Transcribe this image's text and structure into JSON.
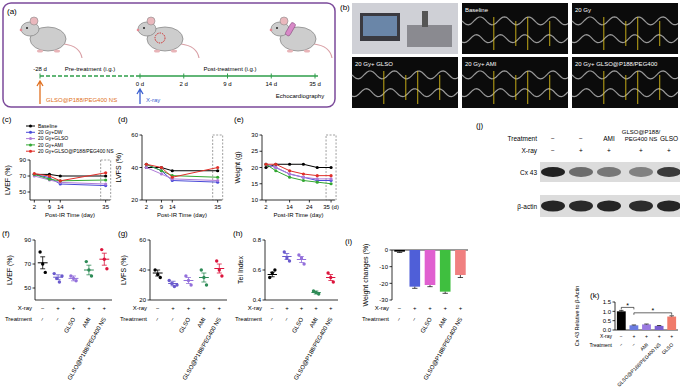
{
  "diagram": {
    "panel_label": "(a)",
    "timeline": [
      "-28 d",
      "0 d",
      "2 d",
      "9 d",
      "14 d",
      "35 d"
    ],
    "pre": "Pre-treatment (i.g.)",
    "post": "Post-treatment (i.g.)",
    "exam": "Echocardiography",
    "agent": "GLSO@P188/PEG400 NS",
    "irradiation": "X-ray"
  },
  "echo": {
    "panel_label": "(b)",
    "labels": [
      "Baseline",
      "20 Gy",
      "20 Gy+ GLSO",
      "20 Gy+ AMI",
      "20 Gy+ GLSO@P188/PEG400"
    ]
  },
  "blot": {
    "panel_label": "(j)",
    "rows": [
      {
        "label": "Treatment",
        "values": [
          "−",
          "−",
          "AMI",
          "GLSO@P188/PEG400 NS",
          "GLSO"
        ]
      },
      {
        "label": "X-ray",
        "values": [
          "−",
          "+",
          "+",
          "+",
          "+"
        ]
      }
    ],
    "bands": [
      "Cx 43",
      "β-actin"
    ]
  },
  "chart_data": [
    {
      "type": "line",
      "panel_label": "(c)",
      "x_label": "Post-IR Time (day)",
      "y_label": "LVEF (%)",
      "x": [
        2,
        9,
        14,
        35
      ],
      "xlim": [
        0,
        37
      ],
      "xticks": [
        2,
        9,
        14,
        35
      ],
      "ylim": [
        40,
        90
      ],
      "yticks": [
        50,
        70,
        90
      ],
      "legend": "upper left",
      "marker": "circle",
      "series": [
        {
          "name": "Baseline",
          "color": "#000000",
          "values": [
            72,
            72,
            70,
            70
          ]
        },
        {
          "name": "20 Gy+DW",
          "color": "#4a4ad8",
          "values": [
            72,
            68,
            60,
            58
          ]
        },
        {
          "name": "20 Gy+GLSO",
          "color": "#b07cd8",
          "values": [
            70,
            65,
            62,
            60
          ]
        },
        {
          "name": "20 Gy+AMI",
          "color": "#33a833",
          "values": [
            72,
            66,
            64,
            65
          ]
        },
        {
          "name": "20 Gy+GLSO@P188/PEG400 NS",
          "color": "#e0302a",
          "values": [
            73,
            70,
            64,
            74
          ]
        }
      ]
    },
    {
      "type": "line",
      "panel_label": "(d)",
      "x_label": "Post-IR Time (day)",
      "y_label": "LVFS (%)",
      "x": [
        2,
        9,
        14,
        35
      ],
      "xlim": [
        0,
        37
      ],
      "xticks": [
        2,
        9,
        14,
        35
      ],
      "ylim": [
        20,
        60
      ],
      "yticks": [
        20,
        40,
        60
      ],
      "marker": "circle",
      "series": [
        {
          "color": "#000000",
          "values": [
            40,
            40,
            38,
            38
          ]
        },
        {
          "color": "#4a4ad8",
          "values": [
            42,
            38,
            32,
            31
          ]
        },
        {
          "color": "#b07cd8",
          "values": [
            40,
            36,
            33,
            32
          ]
        },
        {
          "color": "#33a833",
          "values": [
            42,
            38,
            35,
            34
          ]
        },
        {
          "color": "#e0302a",
          "values": [
            42,
            40,
            34,
            40
          ]
        }
      ]
    },
    {
      "type": "line",
      "panel_label": "(e)",
      "x_label": "Post-IR Time (day)",
      "y_label": "Weight (g)",
      "x": [
        2,
        7,
        14,
        21,
        28,
        35
      ],
      "xlim": [
        0,
        37
      ],
      "xticks": [
        2,
        14,
        24,
        {
          "value": 35,
          "label": "35 (d)"
        }
      ],
      "ylim": [
        10,
        30
      ],
      "yticks": [
        10,
        15,
        20,
        25,
        30
      ],
      "marker": "circle",
      "series": [
        {
          "color": "#000000",
          "values": [
            20,
            21,
            21,
            21,
            20,
            20
          ]
        },
        {
          "color": "#4a4ad8",
          "values": [
            21,
            20,
            18,
            17,
            16,
            16
          ]
        },
        {
          "color": "#b07cd8",
          "values": [
            21,
            20,
            18,
            17,
            16.5,
            16.5
          ]
        },
        {
          "color": "#33a833",
          "values": [
            21,
            19,
            17,
            16,
            15.5,
            15
          ]
        },
        {
          "color": "#e0302a",
          "values": [
            21,
            21,
            19,
            18,
            17.5,
            17.5
          ]
        }
      ]
    },
    {
      "type": "dot",
      "panel_label": "(f)",
      "y_label": "LVEF (%)",
      "row_labels": [
        "X-ray",
        "Treatment"
      ],
      "xray": [
        "−",
        "+",
        "+",
        "+",
        "+"
      ],
      "categories": [
        "−",
        "−",
        "GLSO",
        "AMI",
        "GLSO@P188/PEG400 NS"
      ],
      "ylim": [
        40,
        90
      ],
      "yticks": [
        50,
        70,
        90
      ],
      "colors": [
        "#000000",
        "#6a5acd",
        "#9370db",
        "#2e8b57",
        "#dc143c"
      ],
      "points": [
        [
          80,
          70,
          63
        ],
        [
          62,
          58,
          55,
          60
        ],
        [
          60,
          58,
          56
        ],
        [
          72,
          65,
          60
        ],
        [
          82,
          74,
          66
        ]
      ],
      "means": [
        71,
        59,
        58,
        65,
        74
      ],
      "errors": [
        5,
        2,
        2,
        4,
        5
      ]
    },
    {
      "type": "dot",
      "panel_label": "(g)",
      "y_label": "LVFS (%)",
      "row_labels": [
        "X-ray",
        "Treatment"
      ],
      "xray": [
        "−",
        "+",
        "+",
        "+",
        "+"
      ],
      "categories": [
        "−",
        "−",
        "GLSO",
        "AMI",
        "GLSO@P188/PEG400 NS"
      ],
      "ylim": [
        20,
        60
      ],
      "yticks": [
        20,
        40,
        60
      ],
      "colors": [
        "#000000",
        "#6a5acd",
        "#9370db",
        "#2e8b57",
        "#dc143c"
      ],
      "points": [
        [
          40,
          37,
          35
        ],
        [
          33,
          31,
          29,
          30
        ],
        [
          36,
          33,
          30
        ],
        [
          40,
          35,
          30
        ],
        [
          46,
          40,
          36
        ]
      ],
      "means": [
        38,
        31,
        33,
        35,
        41
      ],
      "errors": [
        2,
        1.5,
        2,
        3,
        3
      ]
    },
    {
      "type": "dot",
      "panel_label": "(h)",
      "y_label": "Tei Index",
      "row_labels": [
        "X-ray",
        "Treatment"
      ],
      "xray": [
        "−",
        "+",
        "+",
        "+",
        "+"
      ],
      "categories": [
        "−",
        "−",
        "GLSO",
        "AMI",
        "GLSO@P188/PEG400 NS"
      ],
      "ylim": [
        0.4,
        0.8
      ],
      "yticks": [
        0.4,
        0.6,
        0.8
      ],
      "colors": [
        "#000000",
        "#6a5acd",
        "#9370db",
        "#2e8b57",
        "#dc143c"
      ],
      "points": [
        [
          0.55,
          0.58,
          0.6
        ],
        [
          0.72,
          0.68,
          0.66
        ],
        [
          0.7,
          0.68,
          0.64
        ],
        [
          0.46,
          0.45,
          0.44
        ],
        [
          0.58,
          0.55,
          0.52
        ]
      ],
      "means": [
        0.57,
        0.69,
        0.67,
        0.45,
        0.55
      ],
      "errors": [
        0.015,
        0.02,
        0.02,
        0.01,
        0.02
      ]
    },
    {
      "type": "bar",
      "panel_label": "(i)",
      "y_label": "Weight changes (%)",
      "row_labels": [
        "X-ray",
        "Treatment"
      ],
      "xray": [
        "−",
        "+",
        "+",
        "+",
        "+"
      ],
      "categories": [
        "−",
        "−",
        "GLSO",
        "AMI",
        "GLSO@P188/PEG400 NS"
      ],
      "ylim": [
        -30,
        0
      ],
      "yticks": [
        -30,
        -20,
        -10,
        0
      ],
      "colors": [
        "#000000",
        "#4f5fd8",
        "#e060d0",
        "#3fbf3f",
        "#f08080"
      ],
      "values": [
        -1,
        -22,
        -21,
        -25,
        -15
      ],
      "errors": [
        0.5,
        1,
        1,
        1,
        1.5
      ],
      "annotations": [
        null,
        "**",
        "**",
        "**",
        "*"
      ]
    },
    {
      "type": "bar",
      "panel_label": "(k)",
      "y_label": "Cx 43 Relative to β-Actin",
      "row_labels": [
        "X-ray",
        "Treatment"
      ],
      "xray": [
        "−",
        "+",
        "+",
        "+",
        "+"
      ],
      "categories": [
        "−",
        "−",
        "AMI",
        "GLSO@P188/PEG400 NS",
        "GLSO"
      ],
      "ylim": [
        0,
        1.5
      ],
      "yticks": [
        {
          "value": 0,
          "label": "0.0"
        },
        0.5,
        {
          "value": 1,
          "label": "1.0"
        },
        1.5
      ],
      "colors": [
        "#000000",
        "#6a7be0",
        "#9a7ae0",
        "#7a5fd0",
        "#f07a6a"
      ],
      "values": [
        1.0,
        0.25,
        0.3,
        0.22,
        0.72
      ],
      "errors": [
        0.05,
        0.02,
        0.02,
        0.02,
        0.04
      ],
      "brackets": [
        {
          "from": 0,
          "to": 1,
          "label": "*"
        },
        {
          "from": 1,
          "to": 4,
          "label": "*"
        }
      ]
    }
  ]
}
